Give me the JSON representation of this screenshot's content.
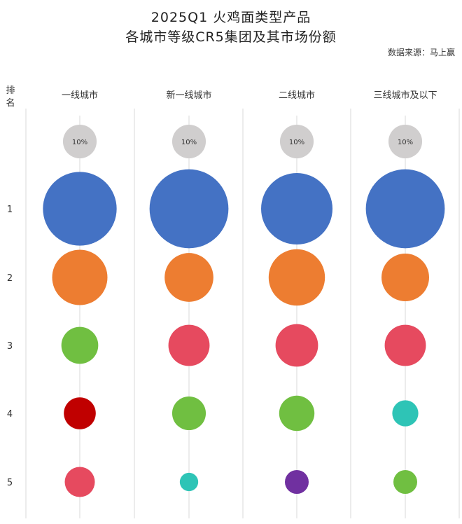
{
  "title_line1": "2025Q1 火鸡面类型产品",
  "title_line2": "各城市等级CR5集团及其市场份额",
  "source": "数据来源：马上赢",
  "chart_data": {
    "type": "bubble",
    "rank_label": "排名",
    "ranks": [
      "1",
      "2",
      "3",
      "4",
      "5"
    ],
    "categories": [
      "一线城市",
      "新一线城市",
      "二线城市",
      "三线城市及以下"
    ],
    "legend_reference": {
      "label": "10%",
      "value": 10,
      "color": "#d0cece"
    },
    "values": [
      [
        48,
        27,
        12,
        9,
        8
      ],
      [
        55,
        21,
        15,
        10,
        3
      ],
      [
        45,
        28,
        16,
        11,
        5
      ],
      [
        55,
        20,
        15,
        6,
        5
      ]
    ],
    "colors": [
      [
        "#4472c4",
        "#ed7d31",
        "#70bf41",
        "#c00000",
        "#e64a5f"
      ],
      [
        "#4472c4",
        "#ed7d31",
        "#e64a5f",
        "#70bf41",
        "#2ec4b6"
      ],
      [
        "#4472c4",
        "#ed7d31",
        "#e64a5f",
        "#70bf41",
        "#7030a0"
      ],
      [
        "#4472c4",
        "#ed7d31",
        "#e64a5f",
        "#2ec4b6",
        "#70bf41"
      ]
    ]
  }
}
